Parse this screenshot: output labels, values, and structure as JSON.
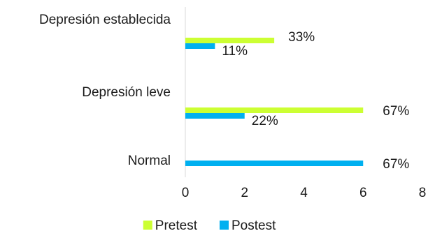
{
  "chart_data": {
    "type": "bar",
    "orientation": "horizontal",
    "categories": [
      "Depresión establecida",
      "Depresión leve",
      "Normal"
    ],
    "series": [
      {
        "name": "Pretest",
        "color": "#CCFF33",
        "values": [
          3,
          6,
          0
        ],
        "labels": [
          "33%",
          "67%",
          ""
        ]
      },
      {
        "name": "Postest",
        "color": "#00B0F0",
        "values": [
          1,
          2,
          6
        ],
        "labels": [
          "11%",
          "22%",
          "67%"
        ]
      }
    ],
    "xlim": [
      0,
      8
    ],
    "xticks": [
      0,
      2,
      4,
      6,
      8
    ],
    "tick_labels": [
      "0",
      "2",
      "4",
      "6",
      "8"
    ],
    "legend_position": "bottom",
    "grid": false
  }
}
